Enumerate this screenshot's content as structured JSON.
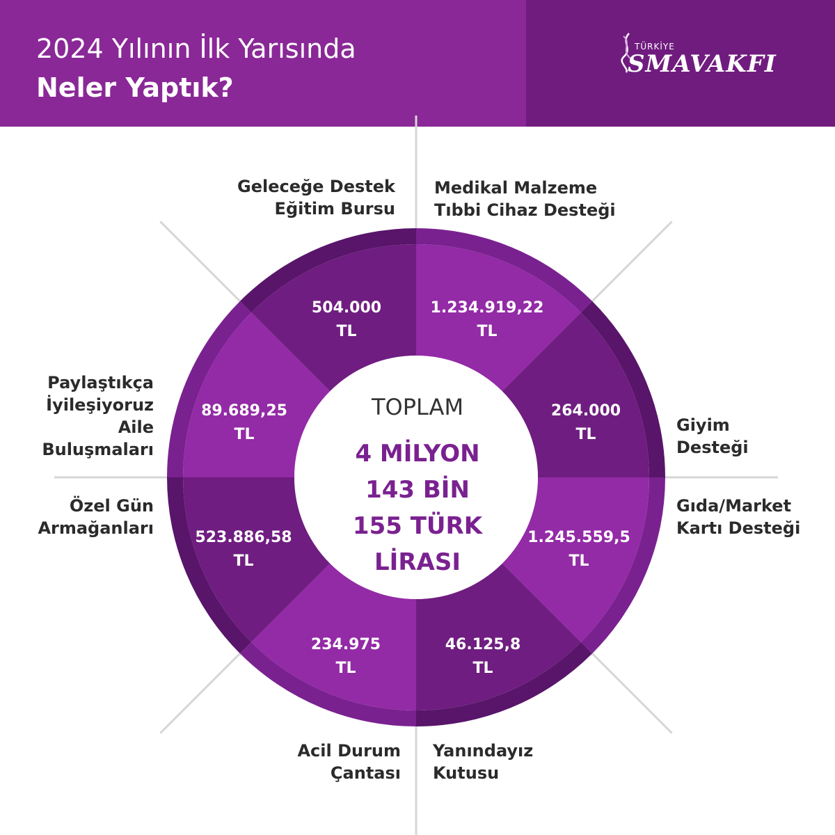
{
  "header": {
    "title_line1": "2024 Yılının İlk Yarısında",
    "title_line2": "Neler Yaptık?",
    "logo_small": "TÜRKİYE",
    "logo_big": "SMAVAKFI"
  },
  "center": {
    "label": "TOPLAM",
    "total_lines": [
      "4 MİLYON",
      "143 BİN",
      "155 TÜRK",
      "LİRASI"
    ]
  },
  "segments": [
    {
      "label_lines": [
        "Geleceğe Destek",
        "Eğitim Bursu"
      ],
      "value_lines": [
        "504.000",
        "TL"
      ]
    },
    {
      "label_lines": [
        "Medikal Malzeme",
        "Tıbbi Cihaz Desteği"
      ],
      "value_lines": [
        "1.234.919,22",
        "TL"
      ]
    },
    {
      "label_lines": [
        "Giyim",
        "Desteği"
      ],
      "value_lines": [
        "264.000",
        "TL"
      ]
    },
    {
      "label_lines": [
        "Gıda/Market",
        "Kartı Desteği"
      ],
      "value_lines": [
        "1.245.559,5",
        "TL"
      ]
    },
    {
      "label_lines": [
        "Yanındayız",
        "Kutusu"
      ],
      "value_lines": [
        "46.125,8",
        "TL"
      ]
    },
    {
      "label_lines": [
        "Acil Durum",
        "Çantası"
      ],
      "value_lines": [
        "234.975",
        "TL"
      ]
    },
    {
      "label_lines": [
        "Özel Gün",
        "Armağanları"
      ],
      "value_lines": [
        "523.886,58",
        "TL"
      ]
    },
    {
      "label_lines": [
        "Paylaştıkça",
        "İyileşiyoruz",
        "Aile",
        "Buluşmaları"
      ],
      "value_lines": [
        "89.689,25",
        "TL"
      ]
    }
  ],
  "colors": {
    "header": "#8a2897",
    "header_dark": "#701c7f",
    "segment_dark": "#6f1d80",
    "segment_light": "#932aa6",
    "ring_dark": "#58156a",
    "ring_light": "#7a2190"
  }
}
